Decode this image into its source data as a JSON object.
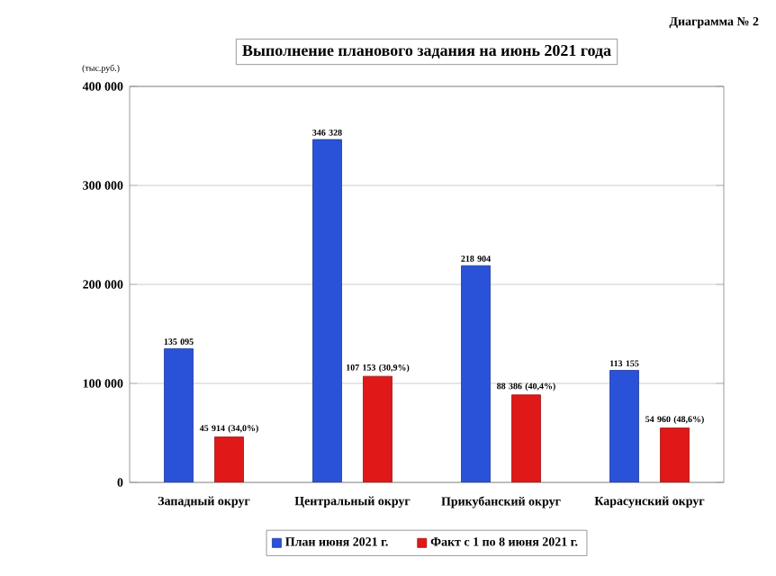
{
  "chart_data": {
    "type": "bar",
    "title": "Выполнение планового задания на июнь 2021 года",
    "ylabel": "(тыс.руб.)",
    "annotations": [
      "Диаграмма № 2"
    ],
    "categories": [
      "Западный округ",
      "Центральный округ",
      "Прикубанский округ",
      "Карасунский округ"
    ],
    "series": [
      {
        "name": "План июня 2021 г.",
        "color": "#2a52d8",
        "values": [
          135095,
          346328,
          218904,
          113155
        ],
        "value_labels": [
          "135 095",
          "346 328",
          "218 904",
          "113 155"
        ]
      },
      {
        "name": "Факт с 1 по 8 июня 2021 г.",
        "color": "#e01818",
        "values": [
          45914,
          107153,
          88386,
          54960
        ],
        "value_labels": [
          "45 914 (34,0%)",
          "107 153 (30,9%)",
          "88 386 (40,4%)",
          "54 960 (48,6%)"
        ]
      }
    ],
    "ylim": [
      0,
      400000
    ],
    "yticks": [
      {
        "value": 0,
        "label": "0"
      },
      {
        "value": 100000,
        "label": "100 000"
      },
      {
        "value": 200000,
        "label": "200 000"
      },
      {
        "value": 300000,
        "label": "300 000"
      },
      {
        "value": 400000,
        "label": "400 000"
      }
    ],
    "grid": "y",
    "legend": "bottom"
  }
}
